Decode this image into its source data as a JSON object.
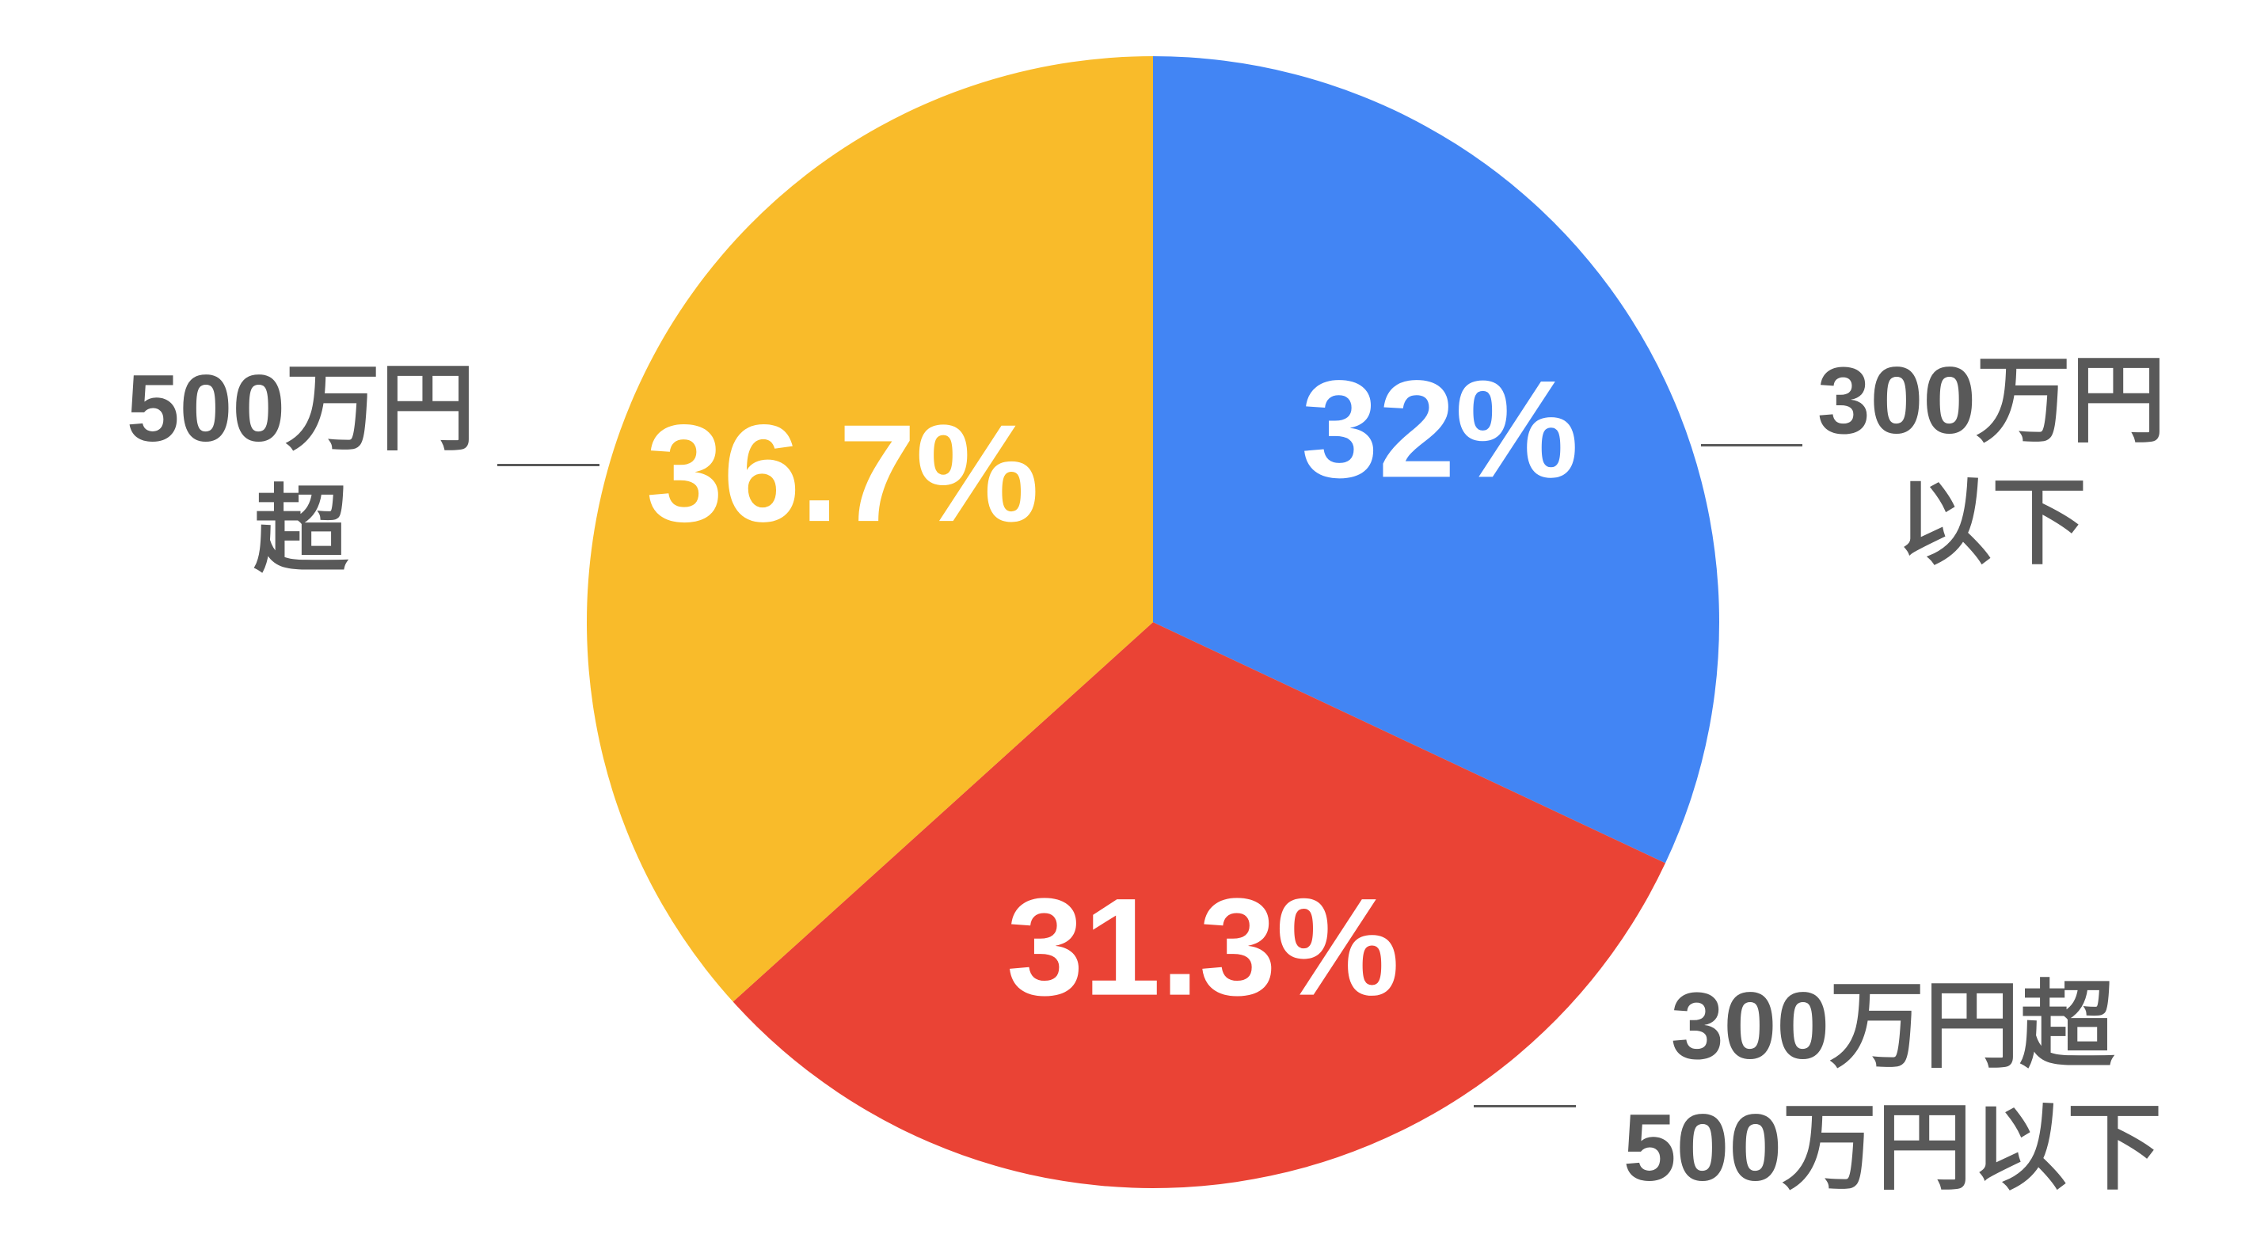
{
  "chart_data": {
    "type": "pie",
    "categories": [
      "300万円以下",
      "300万円超500万円以下",
      "500万円超"
    ],
    "values": [
      32,
      31.3,
      36.7
    ],
    "value_labels": [
      "32%",
      "31.3%",
      "36.7%"
    ],
    "colors": [
      "#4285f4",
      "#ea4335",
      "#f9bb2a"
    ]
  }
}
